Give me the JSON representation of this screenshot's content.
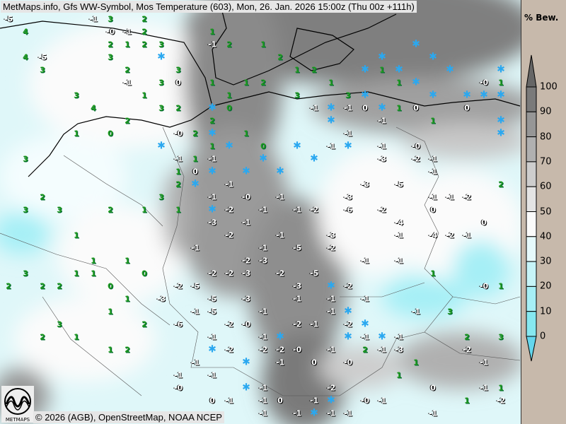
{
  "header": {
    "title": "MetMaps.info, Gfs WW-Symbol, Mos Temperature (603), Mon, 26. Jan. 2026 15:00z (Thu 00z +111h)"
  },
  "footer": {
    "credit": "© 2026 (AGB), OpenStreetMap, NOAA NCEP",
    "logo_text": "METMAPS"
  },
  "legend": {
    "title": "% Bew.",
    "ticks": [
      "100",
      "90",
      "80",
      "70",
      "60",
      "50",
      "40",
      "30",
      "20",
      "10",
      "0"
    ],
    "colors": [
      "#7a7a7a",
      "#969696",
      "#b0b0b0",
      "#cdcdcd",
      "#e4e4e4",
      "#fbfbfb",
      "#e6fafc",
      "#c6f4f8",
      "#a6eff6",
      "#86e8f0",
      "#64d6ec"
    ]
  },
  "map": {
    "positive_color": "#1f9a1f",
    "negative_color": "#ffffff",
    "snow_color": "#2aa8f0",
    "temperatures": [
      "4",
      "3",
      "3",
      "1",
      "2",
      "3",
      "4",
      "2",
      "1",
      "3",
      "2",
      "3",
      "3",
      "1",
      "2",
      "1",
      "1",
      "0",
      "1",
      "1",
      "0",
      "1",
      "2",
      "3",
      "2",
      "1",
      "2",
      "2",
      "1",
      "2",
      "1",
      "1",
      "0",
      "3",
      "2",
      "1",
      "0",
      "1",
      "2",
      "3",
      "1",
      "2",
      "1",
      "0",
      "1",
      "1",
      "2",
      "3",
      "3",
      "2",
      "2",
      "4",
      "1",
      "2",
      "2",
      "3",
      "1",
      "3",
      "2",
      "1",
      "-0",
      "-1",
      "0",
      "-1",
      "-1",
      "-0",
      "-1",
      "-2",
      "-1",
      "-1",
      "-1",
      "-1",
      "-1",
      "-1",
      "-2",
      "-2",
      "-3",
      "-1",
      "-2",
      "-2",
      "-3",
      "-3",
      "-5",
      "-5",
      "-2",
      "-3",
      "-2",
      "-6",
      "-3",
      "-3",
      "-2",
      "-4",
      "-1",
      "-1",
      "-1",
      "-2",
      "-1",
      "-1",
      "-0",
      "-1",
      "-1",
      "-1",
      "0",
      "-1",
      "-2",
      "-0",
      "-1",
      "-1",
      "-1",
      "-1",
      "-0",
      "-1",
      "-1",
      "-1",
      "-2",
      "-1",
      "-3",
      "-2",
      "-3",
      "-2",
      "-3",
      "-5",
      "-2",
      "-1",
      "-1",
      "-1",
      "-2",
      "-4",
      "-2",
      "-1",
      "-0",
      "-1",
      "-1",
      "-1",
      "-1",
      "-1",
      "0",
      "-1",
      "1",
      "0",
      "1",
      "0",
      "1",
      "-0",
      "1",
      "1",
      "3",
      "1",
      "2",
      "1",
      "2",
      "1",
      "2",
      "1",
      "-1",
      "0",
      "3",
      "2",
      "3",
      "1",
      "2",
      "1",
      "0",
      "1",
      "1",
      "-1",
      "-1",
      "-0",
      "1",
      "2",
      "0",
      "-1",
      "0",
      "1",
      "-1",
      "-1",
      "-1",
      "-0",
      "-1",
      "-1",
      "-1",
      "-1",
      "-1",
      "0",
      "-0",
      "-1",
      "-1",
      "-5",
      "-5",
      "-2",
      "-3",
      "-6",
      "-5",
      "-2",
      "-2",
      "-2",
      "0",
      "-1",
      "-2",
      "-1",
      "-1",
      "-3",
      "-2",
      "-1",
      "-2",
      "-4",
      "-5",
      "-1",
      "-5",
      "-0",
      "-1",
      "2",
      "3",
      "3",
      "-1"
    ]
  }
}
